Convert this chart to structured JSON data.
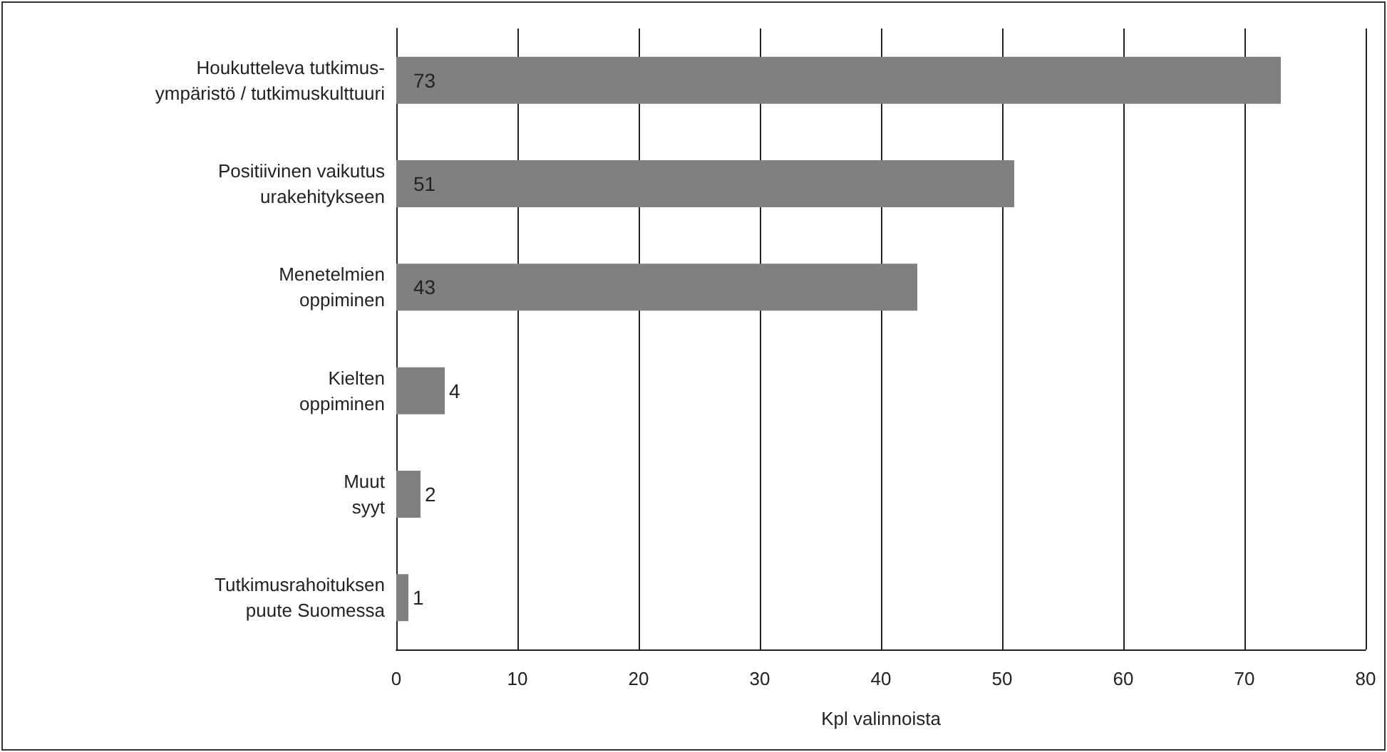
{
  "chart_data": {
    "type": "bar",
    "orientation": "horizontal",
    "categories": [
      "Houkutteleva tutkimus-\nympäristö / tutkimuskulttuuri",
      "Positiivinen vaikutus\nurakehitykseen",
      "Menetelmien\noppiminen",
      "Kielten\noppiminen",
      "Muut\nsyyt",
      "Tutkimusrahoituksen\npuute Suomessa"
    ],
    "values": [
      73,
      51,
      43,
      4,
      2,
      1
    ],
    "color": "#808080",
    "xlim": [
      0,
      80
    ],
    "xticks": [
      0,
      10,
      20,
      30,
      40,
      50,
      60,
      70,
      80
    ],
    "xlabel": "Kpl valinnoista",
    "grid": "x",
    "data_labels": true
  }
}
